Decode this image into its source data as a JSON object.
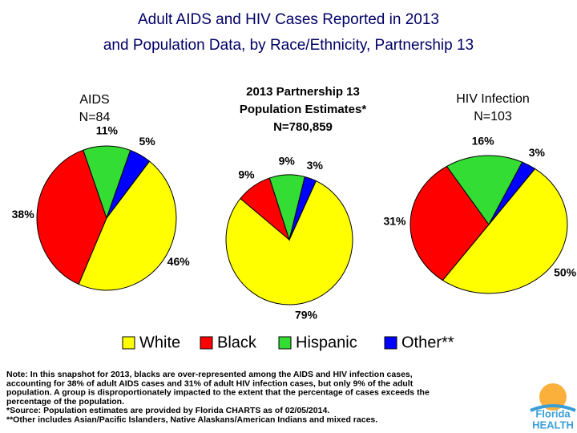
{
  "title": [
    "Adult AIDS and HIV Cases Reported in 2013",
    "and Population Data, by Race/Ethnicity, Partnership 13"
  ],
  "chart_data": [
    {
      "type": "pie",
      "label": [
        "AIDS",
        "N=84"
      ],
      "categories": [
        "White",
        "Black",
        "Hispanic",
        "Other**"
      ],
      "colors": [
        "#ffff00",
        "#ff0000",
        "#33dd33",
        "#0000ff"
      ],
      "values": [
        46,
        38,
        11,
        5
      ],
      "value_labels": [
        "46%",
        "38%",
        "11%",
        "5%"
      ]
    },
    {
      "type": "pie",
      "label": [
        "2013 Partnership 13",
        "Population Estimates*",
        "N=780,859"
      ],
      "categories": [
        "White",
        "Black",
        "Hispanic",
        "Other**"
      ],
      "colors": [
        "#ffff00",
        "#ff0000",
        "#33dd33",
        "#0000ff"
      ],
      "values": [
        79,
        9,
        9,
        3
      ],
      "value_labels": [
        "79%",
        "9%",
        "9%",
        "3%"
      ]
    },
    {
      "type": "pie",
      "label": [
        "HIV Infection",
        "N=103"
      ],
      "categories": [
        "White",
        "Black",
        "Hispanic",
        "Other**"
      ],
      "colors": [
        "#ffff00",
        "#ff0000",
        "#33dd33",
        "#0000ff"
      ],
      "values": [
        50,
        31,
        16,
        3
      ],
      "value_labels": [
        "50%",
        "31%",
        "16%",
        "3%"
      ]
    }
  ],
  "notes": [
    "Note:  In this snapshot for 2013, blacks are over-represented among the AIDS and HIV infection cases,",
    "accounting for 38% of adult AIDS cases and 31% of adult HIV infection cases, but only 9% of the adult",
    "population.  A group is disproportionately impacted to the extent that the percentage of cases exceeds the",
    "percentage of the population.",
    "*Source: Population estimates are provided by Florida CHARTS as of 02/05/2014.",
    "**Other includes Asian/Pacific Islanders, Native Alaskans/American Indians and mixed races."
  ],
  "logo": [
    "Florida",
    "HEALTH"
  ]
}
